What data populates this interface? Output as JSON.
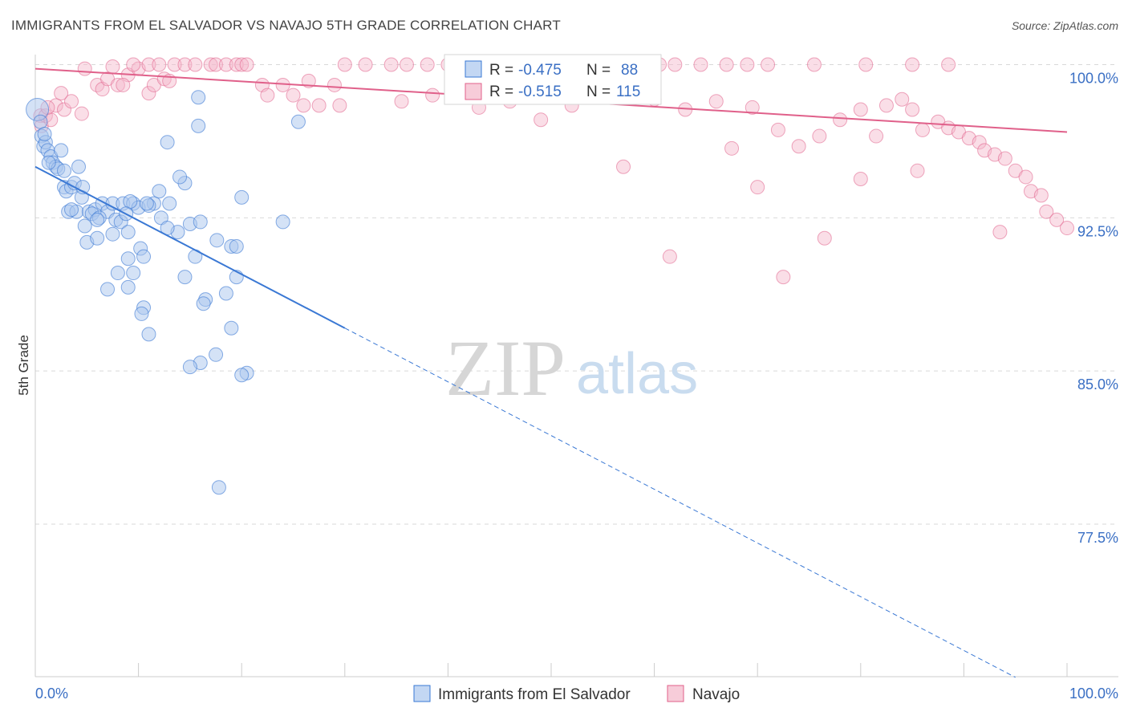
{
  "title": "IMMIGRANTS FROM EL SALVADOR VS NAVAJO 5TH GRADE CORRELATION CHART",
  "source": "Source: ZipAtlas.com",
  "watermark": {
    "zip": "ZIP",
    "atlas": "atlas"
  },
  "colors": {
    "blue": "#3a78d4",
    "blue_fill": "#a9c6ee",
    "pink": "#e0608a",
    "pink_fill": "#f4b6c9",
    "tick_text": "#3a6fc4",
    "grid": "#d9d9d9"
  },
  "legend_box": {
    "rows": [
      {
        "r_label": "R = ",
        "r_value": "-0.475",
        "n_label": "N = ",
        "n_value": "88"
      },
      {
        "r_label": "R = ",
        "r_value": "-0.515",
        "n_label": "N = ",
        "n_value": "115"
      }
    ]
  },
  "chart_data": {
    "type": "scatter",
    "title": "IMMIGRANTS FROM EL SALVADOR VS NAVAJO 5TH GRADE CORRELATION CHART",
    "xlabel": "",
    "ylabel": "5th Grade",
    "xlim": [
      0,
      100
    ],
    "ylim": [
      70.0,
      101.0
    ],
    "x_tick_labels": [
      "0.0%",
      "100.0%"
    ],
    "y_ticks": [
      100.0,
      92.5,
      85.0,
      77.5
    ],
    "y_tick_labels": [
      "100.0%",
      "92.5%",
      "85.0%",
      "77.5%"
    ],
    "grid": true,
    "legend_position": "bottom",
    "series": [
      {
        "name": "Immigrants from El Salvador",
        "color": "#3a78d4",
        "r": -0.475,
        "n": 88,
        "trend": {
          "x0": 0,
          "y0": 95.0,
          "x_solid_end": 30,
          "y_solid_end": 87.1,
          "x_dash_end": 95,
          "y_dash_end": 70.0
        },
        "points": [
          [
            0.2,
            97.8
          ],
          [
            0.5,
            97.2
          ],
          [
            0.6,
            96.5
          ],
          [
            0.8,
            96.0
          ],
          [
            1.0,
            96.2
          ],
          [
            1.2,
            95.8
          ],
          [
            1.5,
            95.5
          ],
          [
            1.7,
            95.2
          ],
          [
            2.0,
            95.0
          ],
          [
            2.5,
            95.8
          ],
          [
            2.2,
            94.9
          ],
          [
            2.8,
            94.0
          ],
          [
            3.0,
            93.8
          ],
          [
            3.5,
            94.0
          ],
          [
            3.8,
            94.2
          ],
          [
            4.2,
            95.0
          ],
          [
            4.5,
            93.5
          ],
          [
            3.2,
            92.8
          ],
          [
            4.0,
            92.8
          ],
          [
            5.2,
            92.8
          ],
          [
            5.8,
            92.9
          ],
          [
            6.5,
            93.2
          ],
          [
            7.0,
            92.8
          ],
          [
            7.5,
            93.2
          ],
          [
            8.5,
            93.2
          ],
          [
            9.5,
            93.2
          ],
          [
            10.0,
            93.0
          ],
          [
            11.5,
            93.2
          ],
          [
            13.0,
            93.2
          ],
          [
            14.5,
            94.2
          ],
          [
            12.0,
            93.8
          ],
          [
            11.0,
            93.1
          ],
          [
            14.0,
            94.5
          ],
          [
            15.0,
            92.2
          ],
          [
            4.8,
            92.1
          ],
          [
            5.5,
            92.7
          ],
          [
            6.2,
            92.5
          ],
          [
            7.8,
            92.4
          ],
          [
            8.3,
            92.3
          ],
          [
            9.0,
            91.8
          ],
          [
            12.2,
            92.5
          ],
          [
            13.8,
            91.8
          ],
          [
            16.0,
            92.3
          ],
          [
            12.8,
            92.0
          ],
          [
            5.0,
            91.3
          ],
          [
            6.0,
            91.5
          ],
          [
            10.2,
            91.0
          ],
          [
            17.6,
            91.4
          ],
          [
            19.0,
            91.1
          ],
          [
            9.0,
            90.5
          ],
          [
            10.5,
            90.6
          ],
          [
            15.5,
            90.6
          ],
          [
            8.0,
            89.8
          ],
          [
            9.5,
            89.8
          ],
          [
            14.5,
            89.6
          ],
          [
            19.5,
            89.6
          ],
          [
            7.0,
            89.0
          ],
          [
            9.0,
            89.1
          ],
          [
            16.5,
            88.5
          ],
          [
            18.5,
            88.8
          ],
          [
            16.3,
            88.3
          ],
          [
            10.5,
            88.1
          ],
          [
            10.3,
            87.8
          ],
          [
            19.0,
            87.1
          ],
          [
            11.0,
            86.8
          ],
          [
            17.5,
            85.8
          ],
          [
            16.0,
            85.4
          ],
          [
            15.0,
            85.2
          ],
          [
            20.5,
            84.9
          ],
          [
            20.0,
            84.8
          ],
          [
            17.8,
            79.3
          ],
          [
            12.8,
            96.2
          ],
          [
            15.8,
            97.0
          ],
          [
            25.5,
            97.2
          ],
          [
            15.8,
            98.4
          ],
          [
            20.0,
            93.5
          ],
          [
            24.0,
            92.3
          ],
          [
            9.2,
            93.3
          ],
          [
            10.8,
            93.2
          ],
          [
            4.6,
            94.0
          ],
          [
            6.0,
            92.4
          ],
          [
            8.8,
            92.7
          ],
          [
            2.8,
            94.8
          ],
          [
            1.3,
            95.2
          ],
          [
            0.9,
            96.6
          ],
          [
            3.5,
            92.9
          ],
          [
            7.5,
            91.7
          ],
          [
            19.5,
            91.1
          ]
        ]
      },
      {
        "name": "Navajo",
        "color": "#e0608a",
        "r": -0.515,
        "n": 115,
        "trend": {
          "x0": 0,
          "y0": 99.8,
          "x1": 100,
          "y1": 96.7
        },
        "points": [
          [
            0.5,
            97.5
          ],
          [
            0.6,
            97.0
          ],
          [
            1.0,
            97.5
          ],
          [
            1.5,
            97.3
          ],
          [
            2.0,
            98.0
          ],
          [
            2.8,
            97.8
          ],
          [
            3.5,
            98.2
          ],
          [
            4.5,
            97.6
          ],
          [
            4.8,
            99.8
          ],
          [
            6.0,
            99.0
          ],
          [
            6.5,
            98.8
          ],
          [
            7.0,
            99.3
          ],
          [
            8.0,
            99.0
          ],
          [
            9.0,
            99.5
          ],
          [
            10.0,
            99.8
          ],
          [
            11.0,
            98.6
          ],
          [
            11.5,
            99.0
          ],
          [
            12.5,
            99.3
          ],
          [
            13.0,
            99.2
          ],
          [
            7.5,
            99.9
          ],
          [
            9.5,
            100.0
          ],
          [
            11.0,
            100.0
          ],
          [
            12.0,
            100.0
          ],
          [
            13.5,
            100.0
          ],
          [
            14.5,
            100.0
          ],
          [
            15.5,
            100.0
          ],
          [
            17.0,
            100.0
          ],
          [
            17.5,
            100.0
          ],
          [
            18.5,
            100.0
          ],
          [
            19.5,
            100.0
          ],
          [
            20.0,
            100.0
          ],
          [
            20.5,
            100.0
          ],
          [
            22.0,
            99.0
          ],
          [
            24.0,
            99.0
          ],
          [
            25.0,
            98.5
          ],
          [
            26.5,
            99.2
          ],
          [
            27.5,
            98.0
          ],
          [
            29.0,
            99.0
          ],
          [
            30.0,
            100.0
          ],
          [
            32.0,
            100.0
          ],
          [
            34.5,
            100.0
          ],
          [
            36.0,
            100.0
          ],
          [
            38.0,
            100.0
          ],
          [
            40.0,
            100.0
          ],
          [
            42.0,
            100.0
          ],
          [
            43.5,
            100.0
          ],
          [
            44.5,
            99.8
          ],
          [
            45.0,
            99.5
          ],
          [
            48.0,
            100.0
          ],
          [
            50.0,
            100.0
          ],
          [
            51.5,
            100.0
          ],
          [
            53.0,
            99.8
          ],
          [
            55.0,
            100.0
          ],
          [
            57.0,
            100.0
          ],
          [
            59.0,
            100.0
          ],
          [
            60.5,
            100.0
          ],
          [
            62.0,
            100.0
          ],
          [
            64.5,
            100.0
          ],
          [
            67.0,
            100.0
          ],
          [
            69.0,
            100.0
          ],
          [
            71.0,
            100.0
          ],
          [
            75.5,
            100.0
          ],
          [
            80.5,
            100.0
          ],
          [
            85.0,
            100.0
          ],
          [
            88.5,
            100.0
          ],
          [
            22.5,
            98.5
          ],
          [
            26.0,
            98.0
          ],
          [
            29.5,
            98.0
          ],
          [
            35.5,
            98.2
          ],
          [
            38.5,
            98.5
          ],
          [
            43.0,
            97.9
          ],
          [
            46.0,
            98.2
          ],
          [
            49.0,
            97.3
          ],
          [
            52.0,
            98.0
          ],
          [
            56.0,
            98.5
          ],
          [
            60.0,
            98.3
          ],
          [
            63.0,
            97.8
          ],
          [
            66.0,
            98.2
          ],
          [
            69.5,
            97.9
          ],
          [
            72.0,
            96.8
          ],
          [
            74.0,
            96.0
          ],
          [
            76.0,
            96.5
          ],
          [
            78.0,
            97.3
          ],
          [
            80.0,
            97.8
          ],
          [
            81.5,
            96.5
          ],
          [
            82.5,
            98.0
          ],
          [
            84.0,
            98.3
          ],
          [
            85.0,
            97.8
          ],
          [
            86.0,
            96.8
          ],
          [
            87.5,
            97.2
          ],
          [
            88.5,
            96.9
          ],
          [
            89.5,
            96.7
          ],
          [
            90.5,
            96.4
          ],
          [
            91.5,
            96.2
          ],
          [
            92.0,
            95.8
          ],
          [
            93.0,
            95.6
          ],
          [
            94.0,
            95.4
          ],
          [
            95.0,
            94.8
          ],
          [
            96.0,
            94.5
          ],
          [
            96.5,
            93.8
          ],
          [
            97.5,
            93.6
          ],
          [
            98.0,
            92.8
          ],
          [
            99.0,
            92.4
          ],
          [
            100.0,
            92.0
          ],
          [
            93.5,
            91.8
          ],
          [
            85.5,
            94.8
          ],
          [
            80.0,
            94.4
          ],
          [
            67.5,
            95.9
          ],
          [
            57.0,
            95.0
          ],
          [
            70.0,
            94.0
          ],
          [
            76.5,
            91.5
          ],
          [
            61.5,
            90.6
          ],
          [
            72.5,
            89.6
          ],
          [
            8.5,
            99.0
          ],
          [
            2.5,
            98.6
          ],
          [
            1.2,
            97.9
          ]
        ]
      }
    ]
  },
  "bottom_legend": [
    {
      "label": "Immigrants from El Salvador"
    },
    {
      "label": "Navajo"
    }
  ]
}
